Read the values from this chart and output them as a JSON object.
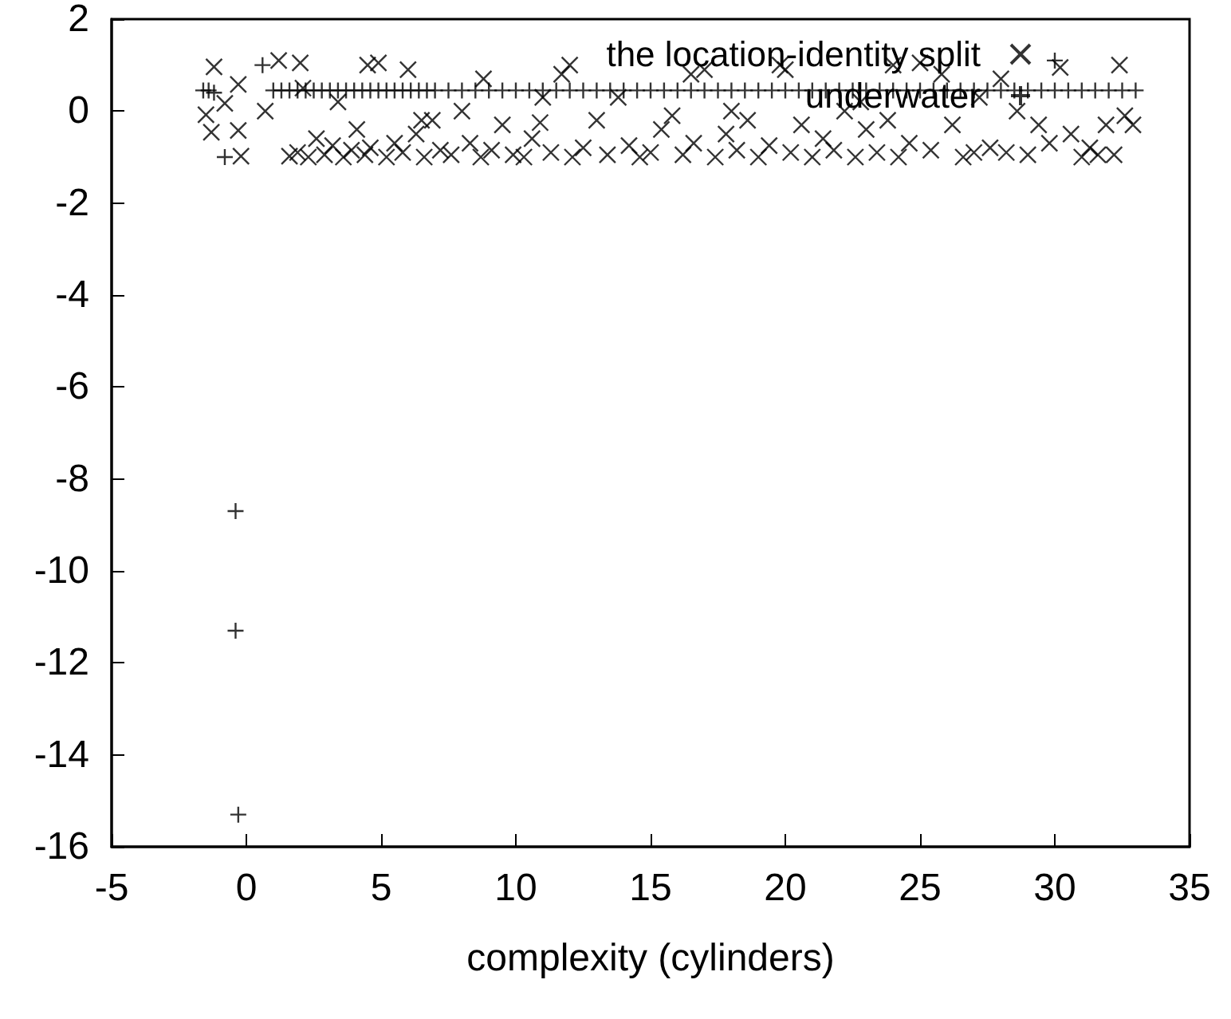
{
  "chart_data": {
    "type": "scatter",
    "xlabel": "complexity (cylinders)",
    "xlim": [
      -5,
      35
    ],
    "xticks": [
      -5,
      0,
      5,
      10,
      15,
      20,
      25,
      30,
      35
    ],
    "ylim": [
      -16,
      2
    ],
    "yticks": [
      -16,
      -14,
      -12,
      -10,
      -8,
      -6,
      -4,
      -2,
      0,
      2
    ],
    "grid": false,
    "legend": "top right",
    "series": [
      {
        "name": "the location-identity split",
        "color": "#000000",
        "marker": "cross",
        "x": [
          -1.2,
          -1.5,
          -1.3,
          -0.8,
          -0.3,
          -0.3,
          -0.2,
          1.2,
          0.7,
          1.6,
          1.9,
          2.1,
          2.3,
          2.6,
          2.9,
          3.2,
          3.4,
          3.6,
          3.9,
          4.1,
          4.4,
          4.6,
          4.9,
          5.2,
          5.5,
          5.8,
          6.0,
          6.3,
          6.6,
          6.9,
          7.2,
          7.6,
          8.0,
          8.3,
          8.7,
          9.1,
          9.5,
          9.9,
          10.3,
          10.6,
          10.9,
          11.3,
          11.7,
          12.1,
          12.5,
          13.0,
          13.4,
          13.8,
          14.2,
          14.6,
          15.0,
          15.4,
          15.8,
          16.2,
          16.6,
          17.0,
          17.4,
          17.8,
          18.2,
          18.6,
          19.0,
          19.4,
          19.8,
          20.2,
          20.6,
          21.0,
          21.4,
          21.8,
          22.2,
          22.6,
          23.0,
          23.4,
          23.8,
          24.2,
          24.6,
          25.0,
          25.4,
          25.8,
          26.2,
          26.6,
          27.0,
          27.6,
          28.2,
          28.6,
          29.0,
          29.4,
          29.8,
          30.2,
          30.6,
          31.0,
          31.3,
          31.6,
          31.9,
          32.2,
          32.6,
          32.9,
          4.5,
          8.8,
          12.0,
          16.5,
          20.0,
          24.0,
          28.0,
          32.4,
          2.0,
          6.5,
          11.0,
          18.0,
          22.8,
          27.2
        ],
        "values": [
          0.96,
          -0.08,
          -0.46,
          0.17,
          -0.42,
          0.58,
          -0.98,
          1.1,
          0.0,
          -0.98,
          -0.9,
          0.5,
          -1.0,
          -0.6,
          -0.95,
          -0.75,
          0.2,
          -1.0,
          -0.85,
          -0.4,
          -0.95,
          -0.8,
          1.05,
          -1.0,
          -0.7,
          -0.9,
          0.9,
          -0.5,
          -1.0,
          -0.2,
          -0.85,
          -0.95,
          0.0,
          -0.7,
          -1.0,
          -0.85,
          -0.3,
          -0.95,
          -1.0,
          -0.6,
          -0.25,
          -0.9,
          0.8,
          -1.0,
          -0.8,
          -0.2,
          -0.95,
          0.3,
          -0.75,
          -1.0,
          -0.9,
          -0.4,
          -0.1,
          -0.95,
          -0.7,
          0.9,
          -1.0,
          -0.5,
          -0.85,
          -0.2,
          -1.0,
          -0.75,
          1.0,
          -0.9,
          -0.3,
          -1.0,
          -0.6,
          -0.85,
          0.0,
          -1.0,
          -0.4,
          -0.9,
          -0.2,
          -1.0,
          -0.7,
          1.05,
          -0.85,
          0.8,
          -0.3,
          -1.0,
          -0.9,
          -0.8,
          -0.9,
          0.0,
          -0.95,
          -0.3,
          -0.7,
          0.95,
          -0.5,
          -1.0,
          -0.8,
          -0.95,
          -0.3,
          -0.95,
          -0.1,
          -0.3,
          1.0,
          0.7,
          1.0,
          0.8,
          0.9,
          1.0,
          0.7,
          1.0,
          1.05,
          -0.2,
          0.3,
          0.0,
          0.2,
          0.3
        ]
      },
      {
        "name": "underwater",
        "color": "#000000",
        "marker": "cross",
        "x": [
          -1.6,
          -1.4,
          -1.2,
          -0.8,
          -0.4,
          -0.4,
          -0.3,
          0.6,
          1.0,
          1.3,
          1.6,
          1.9,
          2.2,
          2.5,
          2.8,
          3.1,
          3.4,
          3.7,
          4.0,
          4.3,
          4.6,
          4.9,
          5.2,
          5.5,
          5.8,
          6.1,
          6.4,
          6.7,
          7.0,
          7.5,
          8.0,
          8.5,
          9.0,
          9.5,
          10.0,
          10.5,
          11.0,
          11.5,
          12.0,
          12.5,
          13.0,
          13.5,
          14.0,
          14.5,
          15.0,
          15.5,
          16.0,
          16.5,
          17.0,
          17.5,
          18.0,
          18.5,
          19.0,
          19.5,
          20.0,
          20.5,
          21.0,
          21.5,
          22.0,
          22.5,
          23.0,
          23.5,
          24.0,
          24.5,
          25.0,
          25.5,
          26.0,
          26.5,
          27.0,
          27.5,
          28.0,
          28.5,
          29.0,
          29.5,
          30.0,
          30.0,
          30.5,
          31.0,
          31.5,
          32.0,
          32.5,
          33.0
        ],
        "values": [
          0.45,
          0.45,
          0.4,
          -1.0,
          -8.7,
          -11.3,
          -15.3,
          1.0,
          0.45,
          0.45,
          0.45,
          0.45,
          0.45,
          0.45,
          0.45,
          0.45,
          0.45,
          0.45,
          0.45,
          0.45,
          0.45,
          0.45,
          0.45,
          0.45,
          0.45,
          0.45,
          0.45,
          0.45,
          0.45,
          0.45,
          0.45,
          0.45,
          0.45,
          0.45,
          0.45,
          0.45,
          0.45,
          0.45,
          0.45,
          0.45,
          0.45,
          0.45,
          0.45,
          0.45,
          0.45,
          0.45,
          0.45,
          0.45,
          0.45,
          0.45,
          0.45,
          0.45,
          0.45,
          0.45,
          0.45,
          0.45,
          0.45,
          0.45,
          0.45,
          0.45,
          0.45,
          0.45,
          0.45,
          0.45,
          0.45,
          0.45,
          0.45,
          0.45,
          0.45,
          0.45,
          0.45,
          0.45,
          0.45,
          0.45,
          0.45,
          1.1,
          0.45,
          0.45,
          0.45,
          0.45,
          0.45,
          0.45
        ]
      }
    ]
  }
}
